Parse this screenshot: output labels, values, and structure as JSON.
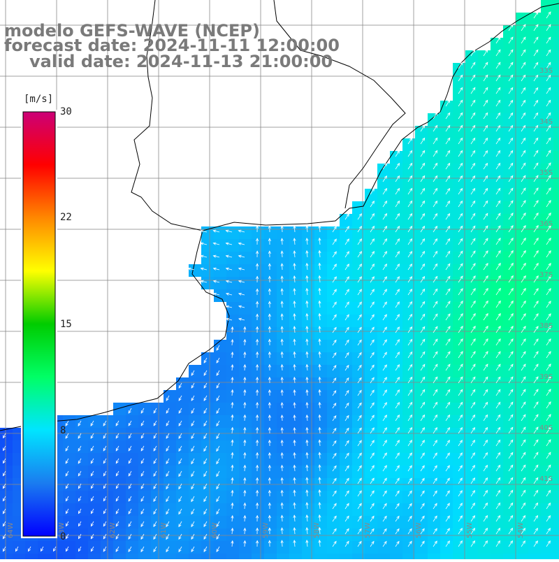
{
  "title": {
    "line1": "modelo GEFS-WAVE (NCEP)",
    "line2": "forecast date: 2024-11-11 12:00:00",
    "line3": "valid date: 2024-11-13 21:00:00"
  },
  "colorbar": {
    "unit": "[m/s]",
    "ticks": [
      "30",
      "22",
      "15",
      "8",
      "0"
    ],
    "tick_values": [
      30,
      22,
      15,
      8,
      0
    ],
    "range": [
      0,
      30
    ],
    "colors": [
      "#0000ff",
      "#1a7cf0",
      "#00e5ff",
      "#00ff66",
      "#00cc00",
      "#ffff00",
      "#ff8800",
      "#ff0000",
      "#cc0077"
    ]
  },
  "latitude_labels": [
    "33S",
    "34S",
    "35S",
    "36S",
    "37S",
    "38S",
    "39S",
    "40S",
    "41S"
  ],
  "longitude_labels": [
    "64W",
    "63W",
    "62W",
    "61W",
    "60W",
    "59W",
    "58W",
    "57W",
    "56W",
    "55W",
    "54W"
  ],
  "colors": {
    "land": "#ffffff",
    "grid": "#888888",
    "coast": "#000000",
    "arrow": "#ffffff",
    "title": "#7a7a7a"
  }
}
